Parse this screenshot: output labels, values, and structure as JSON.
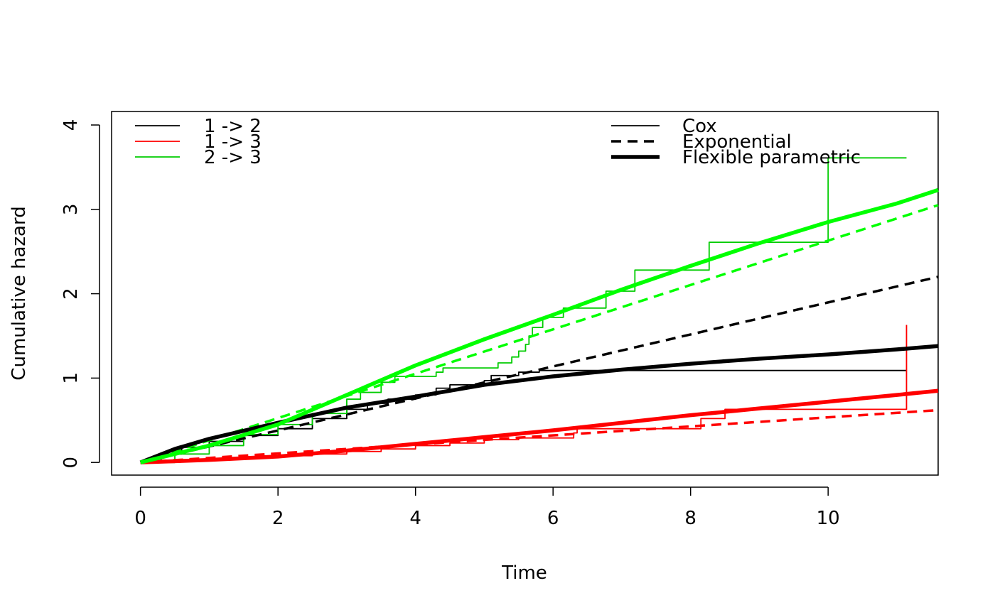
{
  "chart_data": {
    "type": "line",
    "title": "",
    "xlabel": "Time",
    "ylabel": "Cumulative hazard",
    "xlim": [
      -0.42,
      11.6
    ],
    "ylim": [
      -0.15,
      4.16
    ],
    "xticks": [
      0,
      2,
      4,
      6,
      8,
      10
    ],
    "yticks": [
      0,
      1,
      2,
      3,
      4
    ],
    "grid": false,
    "legend_transitions": {
      "placement": "top-left",
      "entries": [
        {
          "label": "1 -> 2",
          "color": "#000000"
        },
        {
          "label": "1 -> 3",
          "color": "#ff0000"
        },
        {
          "label": "2 -> 3",
          "color": "#00cc00"
        }
      ]
    },
    "legend_models": {
      "placement": "top-right",
      "entries": [
        {
          "label": "Cox",
          "style": "thin-solid"
        },
        {
          "label": "Exponential",
          "style": "dashed"
        },
        {
          "label": "Flexible parametric",
          "style": "thick-solid"
        }
      ]
    },
    "series": [
      {
        "name": "1 -> 2 Cox",
        "model": "Cox",
        "color": "#000000",
        "step": true,
        "x": [
          0,
          0.3,
          0.6,
          1,
          1.5,
          2,
          2.5,
          3,
          3.3,
          3.6,
          4,
          4.3,
          4.5,
          5,
          5.1,
          5.5,
          5.8,
          11.14
        ],
        "y": [
          0,
          0.1,
          0.18,
          0.25,
          0.32,
          0.4,
          0.52,
          0.63,
          0.7,
          0.75,
          0.8,
          0.88,
          0.92,
          0.97,
          1.03,
          1.07,
          1.09,
          1.09
        ]
      },
      {
        "name": "1 -> 3 Cox",
        "model": "Cox",
        "color": "#ff0000",
        "step": true,
        "x": [
          0,
          0.5,
          1,
          1.5,
          2,
          2.5,
          3,
          3.5,
          4,
          4.5,
          5,
          5.5,
          6.3,
          6.35,
          8.15,
          8.5,
          11.14,
          11.14
        ],
        "y": [
          0,
          0.02,
          0.04,
          0.06,
          0.08,
          0.1,
          0.13,
          0.16,
          0.2,
          0.23,
          0.27,
          0.29,
          0.35,
          0.4,
          0.52,
          0.63,
          0.63,
          1.63
        ]
      },
      {
        "name": "2 -> 3 Cox",
        "model": "Cox",
        "color": "#00cc00",
        "step": true,
        "x": [
          0,
          0.5,
          1,
          1.5,
          2,
          2.5,
          3,
          3.2,
          3.5,
          3.7,
          4.3,
          4.4,
          5.2,
          5.4,
          5.5,
          5.6,
          5.65,
          5.7,
          5.85,
          6.15,
          6.77,
          7.19,
          8.27,
          10.0,
          11.14
        ],
        "y": [
          0,
          0.1,
          0.2,
          0.33,
          0.45,
          0.58,
          0.75,
          0.83,
          0.95,
          1.02,
          1.07,
          1.12,
          1.18,
          1.25,
          1.32,
          1.4,
          1.5,
          1.6,
          1.72,
          1.83,
          2.03,
          2.28,
          2.61,
          3.61,
          3.61
        ]
      },
      {
        "name": "1 -> 2 Exponential",
        "model": "Exponential",
        "color": "#000000",
        "x": [
          0,
          11.6
        ],
        "y": [
          0,
          2.2
        ]
      },
      {
        "name": "1 -> 3 Exponential",
        "model": "Exponential",
        "color": "#ff0000",
        "x": [
          0,
          11.6
        ],
        "y": [
          0,
          0.62
        ]
      },
      {
        "name": "2 -> 3 Exponential",
        "model": "Exponential",
        "color": "#00ff00",
        "x": [
          0,
          11.6
        ],
        "y": [
          0,
          3.05
        ]
      },
      {
        "name": "1 -> 2 Flexible parametric",
        "model": "Flexible parametric",
        "color": "#000000",
        "x": [
          0,
          0.5,
          1,
          2,
          3,
          4,
          5,
          6,
          7,
          8,
          9,
          10,
          11,
          11.6
        ],
        "y": [
          0,
          0.16,
          0.28,
          0.47,
          0.65,
          0.78,
          0.92,
          1.02,
          1.1,
          1.17,
          1.23,
          1.28,
          1.34,
          1.38
        ]
      },
      {
        "name": "1 -> 3 Flexible parametric",
        "model": "Flexible parametric",
        "color": "#ff0000",
        "x": [
          0,
          1,
          2,
          3,
          4,
          5,
          6,
          7,
          8,
          9,
          10,
          11,
          11.6
        ],
        "y": [
          0,
          0.03,
          0.07,
          0.14,
          0.22,
          0.3,
          0.38,
          0.47,
          0.56,
          0.64,
          0.72,
          0.8,
          0.85
        ]
      },
      {
        "name": "2 -> 3 Flexible parametric",
        "model": "Flexible parametric",
        "color": "#00ff00",
        "x": [
          0,
          1,
          2,
          3,
          4,
          5,
          6,
          7,
          8,
          9,
          10,
          11,
          11.6
        ],
        "y": [
          0,
          0.2,
          0.45,
          0.8,
          1.15,
          1.46,
          1.75,
          2.05,
          2.33,
          2.6,
          2.85,
          3.07,
          3.23
        ]
      }
    ]
  }
}
